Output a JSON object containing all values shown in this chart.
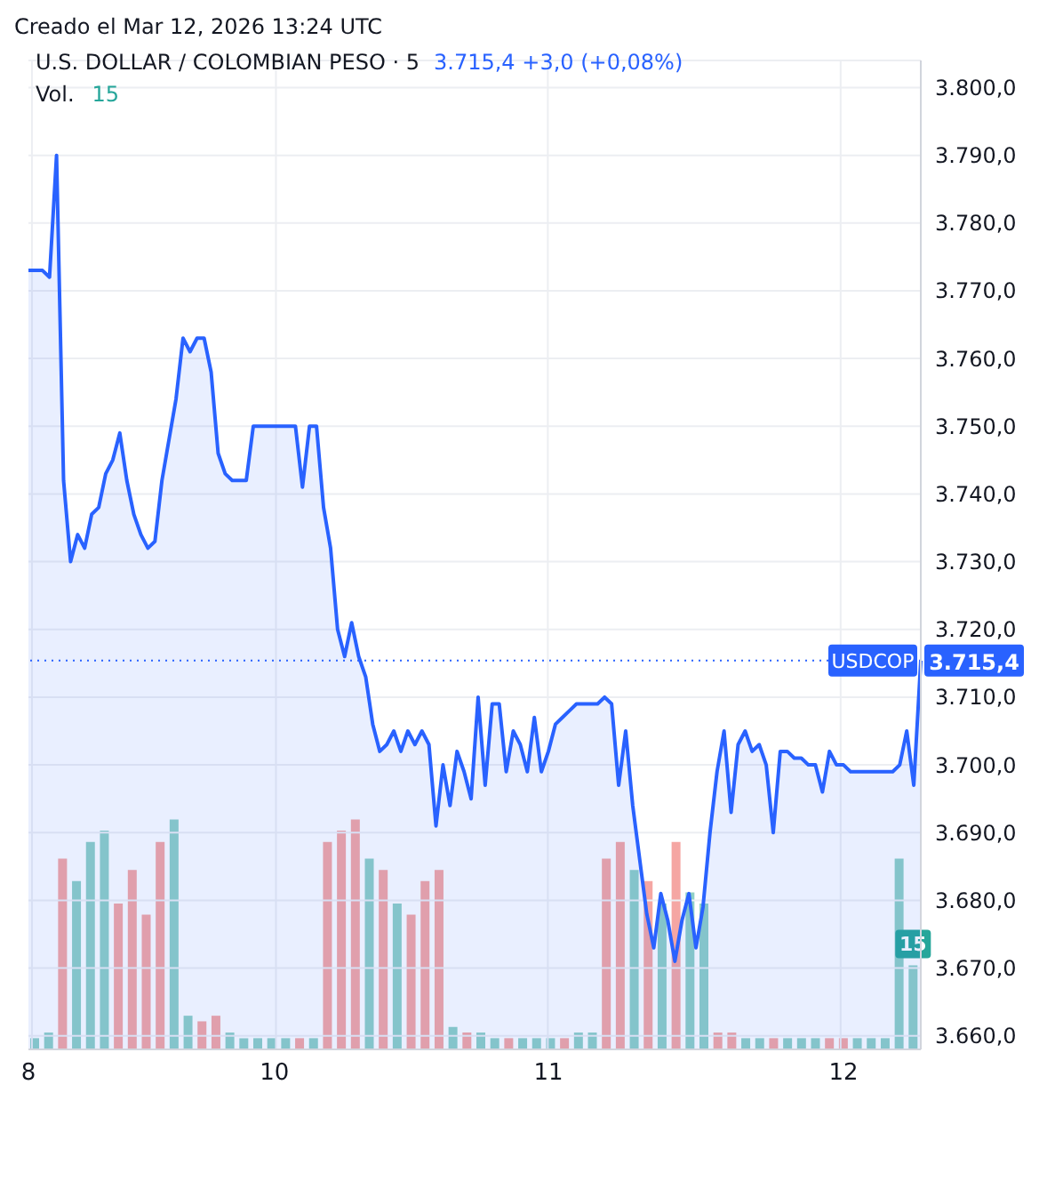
{
  "chart_data": [
    {
      "type": "area",
      "title": "U.S. DOLLAR / COLOMBIAN PESO · 5",
      "subtitle": "3.715,4  +3,0 (+0,08%)",
      "annotations": [
        "Creado el Mar 12, 2026 13:24 UTC",
        "3.715,4"
      ],
      "categories": [
        "8",
        null,
        null,
        null,
        null,
        null,
        null,
        null,
        null,
        null,
        null,
        null,
        null,
        null,
        null,
        null,
        null,
        null,
        null,
        null,
        null,
        null,
        null,
        null,
        null,
        null,
        null,
        null,
        null,
        null,
        null,
        null,
        null,
        null,
        null,
        "10",
        null,
        null,
        null,
        null,
        null,
        null,
        null,
        null,
        null,
        null,
        null,
        null,
        null,
        null,
        null,
        null,
        null,
        null,
        null,
        null,
        null,
        null,
        null,
        null,
        null,
        null,
        null,
        null,
        null,
        null,
        null,
        null,
        null,
        null,
        null,
        null,
        null,
        null,
        "11",
        null,
        null,
        null,
        null,
        null,
        null,
        null,
        null,
        null,
        null,
        null,
        null,
        null,
        null,
        null,
        null,
        null,
        null,
        null,
        null,
        null,
        null,
        null,
        null,
        null,
        null,
        null,
        null,
        null,
        null,
        null,
        null,
        null,
        null,
        null,
        null,
        null,
        null,
        null,
        null,
        null,
        "12",
        null,
        null,
        null,
        null,
        null,
        null,
        null,
        null,
        null,
        null,
        null
      ],
      "series": [
        {
          "color": "#2962ff",
          "values": [
            3773,
            3773,
            3773,
            3772,
            3790,
            3742,
            3730,
            3734,
            3732,
            3737,
            3738,
            3743,
            3745,
            3749,
            3742,
            3737,
            3734,
            3732,
            3733,
            3742,
            3748,
            3754,
            3763,
            3761,
            3763,
            3763,
            3758,
            3746,
            3743,
            3742,
            3742,
            3742,
            3750,
            3750,
            3750,
            3750,
            3750,
            3750,
            3750,
            3741,
            3750,
            3750,
            3738,
            3732,
            3720,
            3716,
            3721,
            3716,
            3713,
            3706,
            3702,
            3703,
            3705,
            3702,
            3705,
            3703,
            3705,
            3703,
            3691,
            3700,
            3694,
            3702,
            3699,
            3695,
            3710,
            3697,
            3709,
            3709,
            3699,
            3705,
            3703,
            3699,
            3707,
            3699,
            3702,
            3706,
            3707,
            3708,
            3709,
            3709,
            3709,
            3709,
            3710,
            3709,
            3697,
            3705,
            3694,
            3686,
            3678,
            3673,
            3681,
            3677,
            3671,
            3677,
            3681,
            3673,
            3679,
            3690,
            3699,
            3705,
            3693,
            3703,
            3705,
            3702,
            3703,
            3700,
            3690,
            3702,
            3702,
            3701,
            3701,
            3700,
            3700,
            3696,
            3702,
            3700,
            3700,
            3699,
            3699,
            3699,
            3699,
            3699,
            3699,
            3699,
            3700,
            3705,
            3697,
            3715.4
          ]
        }
      ],
      "ylim": [
        3658,
        3804
      ],
      "yticks": [
        {
          "value": 3660,
          "label": "3.660,0"
        },
        {
          "value": 3670,
          "label": "3.670,0"
        },
        {
          "value": 3680,
          "label": "3.680,0"
        },
        {
          "value": 3690,
          "label": "3.690,0"
        },
        {
          "value": 3700,
          "label": "3.700,0"
        },
        {
          "value": 3710,
          "label": "3.710,0"
        },
        {
          "value": 3720,
          "label": "3.720,0"
        },
        {
          "value": 3730,
          "label": "3.730,0"
        },
        {
          "value": 3740,
          "label": "3.740,0"
        },
        {
          "value": 3750,
          "label": "3.750,0"
        },
        {
          "value": 3760,
          "label": "3.760,0"
        },
        {
          "value": 3770,
          "label": "3.770,0"
        },
        {
          "value": 3780,
          "label": "3.780,0"
        },
        {
          "value": 3790,
          "label": "3.790,0"
        },
        {
          "value": 3800,
          "label": "3.800,0"
        }
      ],
      "ref_lines": [
        {
          "axis": "y",
          "value": 3715.4,
          "label": "USDCOP",
          "color": "#2962ff",
          "line_style": "dotted"
        }
      ],
      "grid": true
    },
    {
      "type": "bar",
      "title": "Vol.",
      "categories": [
        null,
        null,
        null,
        null,
        null,
        null,
        null,
        null,
        null,
        null,
        null,
        null,
        null,
        null,
        null,
        null,
        null,
        null,
        null,
        null,
        null,
        null,
        null,
        null,
        null,
        null,
        null,
        null,
        null,
        null,
        null,
        null,
        null,
        null,
        null,
        null,
        null,
        null,
        null,
        null,
        null,
        null,
        null,
        null,
        null,
        null,
        null,
        null,
        null,
        null,
        null,
        null,
        null,
        null,
        null,
        null,
        null,
        null,
        null,
        null,
        null,
        null,
        null,
        null
      ],
      "values": [
        2,
        3,
        34,
        30,
        37,
        39,
        26,
        32,
        24,
        37,
        41,
        6,
        5,
        6,
        3,
        2,
        2,
        2,
        2,
        2,
        2,
        37,
        39,
        41,
        34,
        32,
        26,
        24,
        30,
        32,
        4,
        3,
        3,
        2,
        2,
        2,
        2,
        2,
        2,
        3,
        3,
        34,
        37,
        32,
        30,
        26,
        37,
        28,
        26,
        3,
        3,
        2,
        2,
        2,
        2,
        2,
        2,
        2,
        2,
        2,
        2,
        2,
        34,
        15
      ],
      "colors": [
        "#8fd0c6",
        "#8fd0c6",
        "#f5a6a3",
        "#8fd0c6",
        "#8fd0c6",
        "#8fd0c6",
        "#f5a6a3",
        "#f5a6a3",
        "#f5a6a3",
        "#f5a6a3",
        "#8fd0c6",
        "#8fd0c6",
        "#f5a6a3",
        "#f5a6a3",
        "#8fd0c6",
        "#8fd0c6",
        "#8fd0c6",
        "#8fd0c6",
        "#8fd0c6",
        "#f5a6a3",
        "#8fd0c6",
        "#f5a6a3",
        "#f5a6a3",
        "#f5a6a3",
        "#8fd0c6",
        "#f5a6a3",
        "#8fd0c6",
        "#f5a6a3",
        "#f5a6a3",
        "#f5a6a3",
        "#8fd0c6",
        "#f5a6a3",
        "#8fd0c6",
        "#8fd0c6",
        "#f5a6a3",
        "#8fd0c6",
        "#8fd0c6",
        "#8fd0c6",
        "#f5a6a3",
        "#8fd0c6",
        "#8fd0c6",
        "#f5a6a3",
        "#f5a6a3",
        "#8fd0c6",
        "#f5a6a3",
        "#8fd0c6",
        "#f5a6a3",
        "#8fd0c6",
        "#8fd0c6",
        "#f5a6a3",
        "#f5a6a3",
        "#8fd0c6",
        "#8fd0c6",
        "#f5a6a3",
        "#8fd0c6",
        "#8fd0c6",
        "#8fd0c6",
        "#f5a6a3",
        "#f5a6a3",
        "#8fd0c6",
        "#8fd0c6",
        "#8fd0c6",
        "#8fd0c6",
        "#8fd0c6"
      ],
      "value_labels": [
        null,
        null,
        null,
        null,
        null,
        null,
        null,
        null,
        null,
        null,
        null,
        null,
        null,
        null,
        null,
        null,
        null,
        null,
        null,
        null,
        null,
        null,
        null,
        null,
        null,
        null,
        null,
        null,
        null,
        null,
        null,
        null,
        null,
        null,
        null,
        null,
        null,
        null,
        null,
        null,
        null,
        null,
        null,
        null,
        null,
        null,
        null,
        null,
        null,
        null,
        null,
        null,
        null,
        null,
        null,
        null,
        null,
        null,
        null,
        null,
        null,
        null,
        null,
        "15"
      ]
    }
  ]
}
